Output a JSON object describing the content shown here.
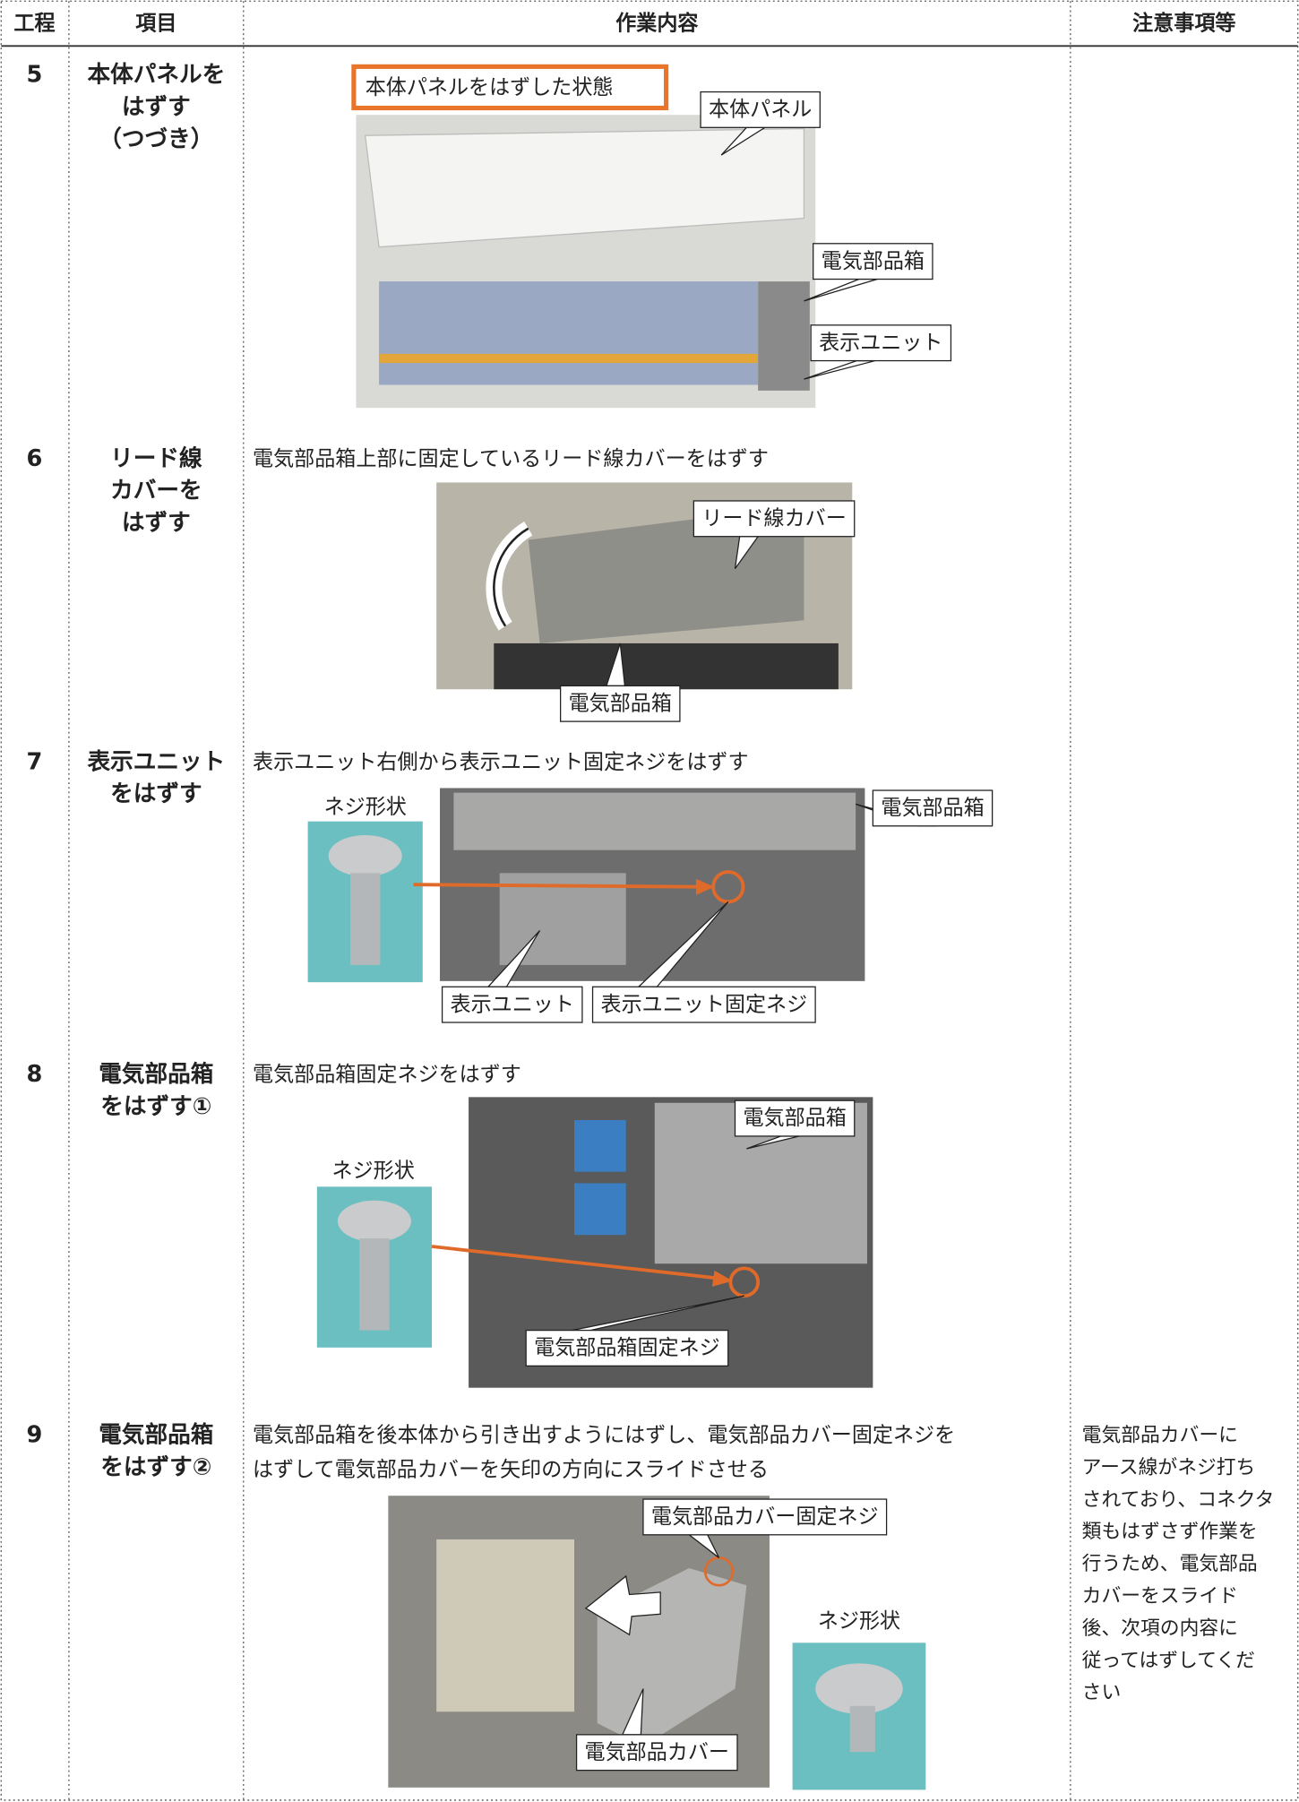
{
  "header": {
    "columns": [
      "工程",
      "項目",
      "作業内容",
      "注意事項等"
    ]
  },
  "steps": [
    {
      "number": "5",
      "item": [
        "本体パネルを",
        "はずす",
        "（つづき）"
      ],
      "caption": "本体パネルをはずした状態",
      "callouts": [
        "本体パネル",
        "電気部品箱",
        "表示ユニット"
      ]
    },
    {
      "number": "6",
      "item": [
        "リード線",
        "カバーを",
        "はずす"
      ],
      "description": [
        "電気部品箱上部に固定しているリード線カバーをはずす"
      ],
      "callouts": [
        "リード線カバー",
        "電気部品箱"
      ]
    },
    {
      "number": "7",
      "item": [
        "表示ユニット",
        "をはずす"
      ],
      "description": [
        "表示ユニット右側から表示ユニット固定ネジをはずす"
      ],
      "screw_label": "ネジ形状",
      "callouts": [
        "電気部品箱",
        "表示ユニット",
        "表示ユニット固定ネジ"
      ]
    },
    {
      "number": "8",
      "item": [
        "電気部品箱",
        "をはずす①"
      ],
      "description": [
        "電気部品箱固定ネジをはずす"
      ],
      "screw_label": "ネジ形状",
      "callouts": [
        "電気部品箱",
        "電気部品箱固定ネジ"
      ]
    },
    {
      "number": "9",
      "item": [
        "電気部品箱",
        "をはずす②"
      ],
      "description": [
        "電気部品箱を後本体から引き出すようにはずし、電気部品カバー固定ネジを",
        "はずして電気部品カバーを矢印の方向にスライドさせる"
      ],
      "screw_label": "ネジ形状",
      "callouts": [
        "電気部品カバー固定ネジ",
        "電気部品カバー"
      ],
      "note": [
        "電気部品カバーに",
        "アース線がネジ打ち",
        "されており、コネクタ",
        "類もはずさず作業を",
        "行うため、電気部品",
        "カバーをスライド",
        "後、次項の内容に",
        "従ってはずしてくだ",
        "さい"
      ]
    }
  ]
}
